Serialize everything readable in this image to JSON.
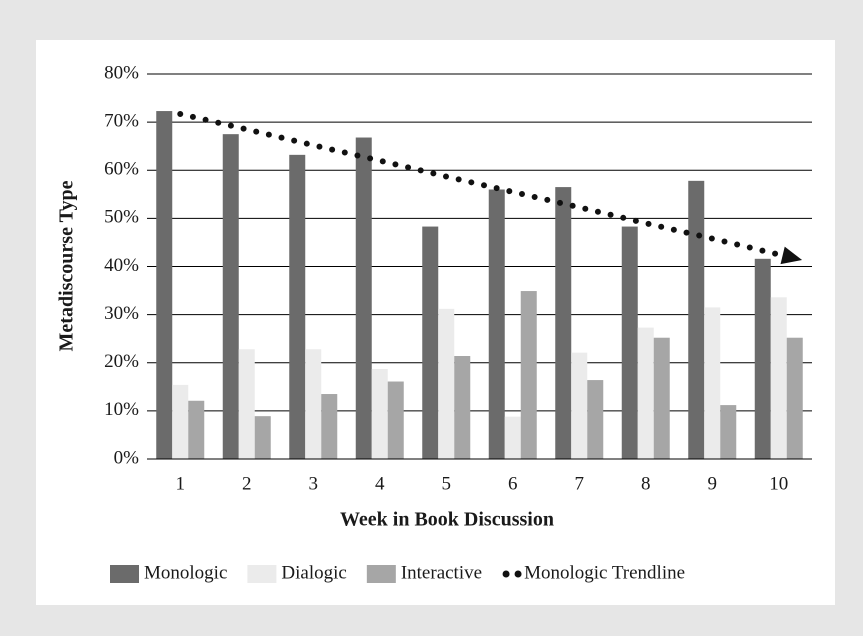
{
  "chart_data": {
    "type": "bar",
    "x_label": "Week in Book Discussion",
    "y_label": "Metadiscourse Type",
    "categories": [
      "1",
      "2",
      "3",
      "4",
      "5",
      "6",
      "7",
      "8",
      "9",
      "10"
    ],
    "series": [
      {
        "name": "Monologic",
        "color": "#6b6b6b",
        "values": [
          72.3,
          67.5,
          63.2,
          66.8,
          48.3,
          56.0,
          56.5,
          48.3,
          57.8,
          41.6
        ]
      },
      {
        "name": "Dialogic",
        "color": "#ebebeb",
        "values": [
          15.4,
          22.8,
          22.8,
          18.7,
          31.2,
          8.8,
          22.1,
          27.3,
          31.5,
          33.6
        ]
      },
      {
        "name": "Interactive",
        "color": "#a6a6a6",
        "values": [
          12.1,
          8.9,
          13.5,
          16.1,
          21.4,
          34.9,
          16.4,
          25.2,
          11.2,
          25.2
        ]
      },
      {
        "name": "Monologic Trendline",
        "color": "#111111",
        "type": "line",
        "style": "dotted",
        "values": [
          71.7,
          68.5,
          65.2,
          62.0,
          58.7,
          55.5,
          52.3,
          49.0,
          45.8,
          42.5
        ]
      }
    ],
    "ylim": [
      0,
      80
    ],
    "yticks": [
      {
        "value": 0,
        "label": "0%"
      },
      {
        "value": 10,
        "label": "10%"
      },
      {
        "value": 20,
        "label": "20%"
      },
      {
        "value": 30,
        "label": "30%"
      },
      {
        "value": 40,
        "label": "40%"
      },
      {
        "value": 50,
        "label": "50%"
      },
      {
        "value": 60,
        "label": "60%"
      },
      {
        "value": 70,
        "label": "70%"
      },
      {
        "value": 80,
        "label": "80%"
      }
    ],
    "grid": true,
    "legend": "bottom"
  }
}
